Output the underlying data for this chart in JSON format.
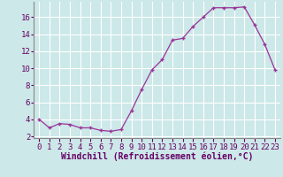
{
  "x": [
    0,
    1,
    2,
    3,
    4,
    5,
    6,
    7,
    8,
    9,
    10,
    11,
    12,
    13,
    14,
    15,
    16,
    17,
    18,
    19,
    20,
    21,
    22,
    23
  ],
  "y": [
    4.0,
    3.0,
    3.5,
    3.4,
    3.0,
    3.0,
    2.7,
    2.6,
    2.8,
    5.0,
    7.5,
    9.8,
    11.0,
    13.3,
    13.5,
    14.9,
    16.0,
    17.1,
    17.1,
    17.1,
    17.2,
    15.1,
    12.8,
    9.8
  ],
  "line_color": "#993399",
  "marker": "+",
  "marker_color": "#993399",
  "bg_color": "#cce8e8",
  "grid_color": "#ffffff",
  "xlabel": "Windchill (Refroidissement éolien,°C)",
  "xlabel_fontsize": 7,
  "tick_fontsize": 6.5,
  "ylim": [
    1.8,
    17.8
  ],
  "yticks": [
    2,
    4,
    6,
    8,
    10,
    12,
    14,
    16
  ],
  "xticks": [
    0,
    1,
    2,
    3,
    4,
    5,
    6,
    7,
    8,
    9,
    10,
    11,
    12,
    13,
    14,
    15,
    16,
    17,
    18,
    19,
    20,
    21,
    22,
    23
  ]
}
